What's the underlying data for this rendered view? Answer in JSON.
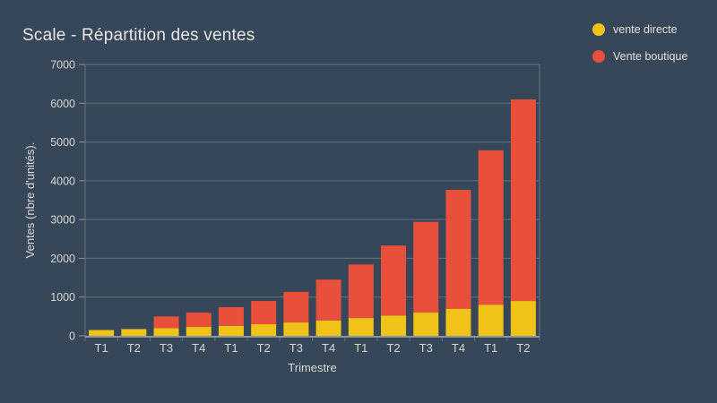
{
  "title": "Scale - Répartition des ventes",
  "legend": [
    {
      "label": "vente directe",
      "color": "#F0C316"
    },
    {
      "label": "Vente boutique",
      "color": "#E8503B"
    }
  ],
  "chart_data": {
    "type": "bar",
    "stacked": true,
    "title": "Scale - Répartition des ventes",
    "xlabel": "Trimestre",
    "ylabel": "Ventes (nbre d'unités).",
    "categories": [
      "T1",
      "T2",
      "T3",
      "T4",
      "T1",
      "T2",
      "T3",
      "T4",
      "T1",
      "T2",
      "T3",
      "T4",
      "T1",
      "T2"
    ],
    "series": [
      {
        "name": "vente directe",
        "color": "#F0C316",
        "values": [
          150,
          175,
          200,
          230,
          260,
          300,
          345,
          395,
          460,
          525,
          600,
          700,
          805,
          900
        ]
      },
      {
        "name": "Vente boutique",
        "color": "#E8503B",
        "values": [
          0,
          0,
          300,
          370,
          480,
          600,
          790,
          1055,
          1380,
          1805,
          2340,
          3065,
          3980,
          5200
        ]
      }
    ],
    "ylim": [
      0,
      7000
    ],
    "ytick_step": 1000,
    "ytick_labels": [
      "0",
      "1000",
      "2000",
      "3000",
      "4000",
      "5000",
      "6000",
      "7000"
    ],
    "grid": true,
    "legend_position": "top-right",
    "colors": {
      "background": "#36475A",
      "grid": "#65707D",
      "axis": "#8C96A0",
      "tick_text": "#D9D7D2",
      "axis_title_text": "#DCDAD5"
    }
  }
}
